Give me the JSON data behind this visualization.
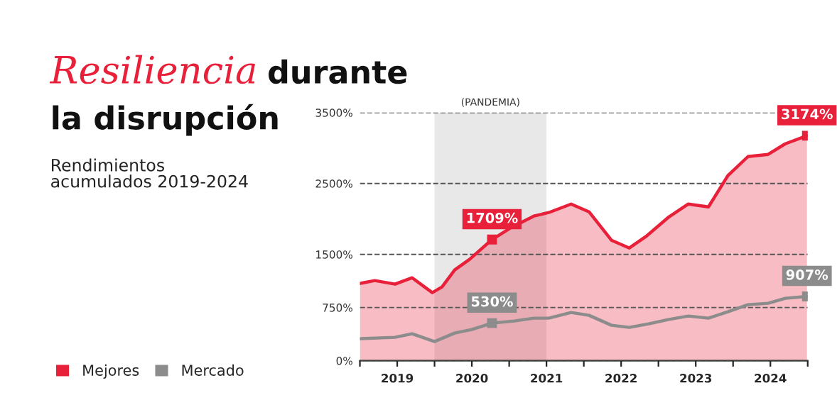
{
  "chart_data": {
    "type": "area",
    "title": "Resiliencia durante la disrupción",
    "subtitle": "Rendimientos acumulados 2019-2024",
    "xlim": [
      2019,
      2025
    ],
    "xticks": [
      {
        "value": 2019,
        "label": null
      },
      {
        "value": 2019.5,
        "label": "2019"
      },
      {
        "value": 2020,
        "label": null
      },
      {
        "value": 2020.5,
        "label": "2020"
      },
      {
        "value": 2021,
        "label": null
      },
      {
        "value": 2021.5,
        "label": "2021"
      },
      {
        "value": 2022,
        "label": null
      },
      {
        "value": 2022.5,
        "label": "2022"
      },
      {
        "value": 2023,
        "label": null
      },
      {
        "value": 2023.5,
        "label": "2023"
      },
      {
        "value": 2024,
        "label": null
      },
      {
        "value": 2024.5,
        "label": "2024"
      },
      {
        "value": 2025,
        "label": null
      }
    ],
    "ylim": [
      0,
      3500
    ],
    "yticks": [
      {
        "value": 0,
        "label": "0%"
      },
      {
        "value": 750,
        "label": "750%"
      },
      {
        "value": 1500,
        "label": "1500%"
      },
      {
        "value": 2500,
        "label": "2500%"
      },
      {
        "value": 3500,
        "label": "3500%"
      }
    ],
    "grid": "y",
    "legend": "bottom left",
    "bands": [
      {
        "axis": "x",
        "from": 2020.0,
        "to": 2021.5,
        "label": "(PANDEMIA)",
        "color": "#d9d9d9"
      }
    ],
    "series": [
      {
        "name": "Mejores",
        "type": "area",
        "color": "#e8203a",
        "x": [
          2019.0,
          2019.2,
          2019.47,
          2019.7,
          2019.97,
          2020.1,
          2020.27,
          2020.47,
          2020.77,
          2021.03,
          2021.33,
          2021.53,
          2021.83,
          2022.07,
          2022.37,
          2022.61,
          2022.83,
          2023.13,
          2023.4,
          2023.67,
          2023.93,
          2024.2,
          2024.47,
          2024.7,
          2024.99
        ],
        "values": [
          1090,
          1130,
          1080,
          1170,
          960,
          1040,
          1280,
          1430,
          1709,
          1880,
          2040,
          2090,
          2210,
          2100,
          1700,
          1590,
          1750,
          2020,
          2210,
          2170,
          2610,
          2880,
          2910,
          3060,
          3174
        ],
        "value_labels": [
          null,
          null,
          null,
          null,
          null,
          null,
          null,
          null,
          "1709%",
          null,
          null,
          null,
          null,
          null,
          null,
          null,
          null,
          null,
          null,
          null,
          null,
          null,
          null,
          null,
          "3174%"
        ]
      },
      {
        "name": "Mercado",
        "type": "line",
        "color": "#8c8c8c",
        "x": [
          2019.0,
          2019.47,
          2019.7,
          2020.0,
          2020.27,
          2020.5,
          2020.77,
          2021.07,
          2021.33,
          2021.53,
          2021.83,
          2022.07,
          2022.37,
          2022.61,
          2022.87,
          2023.13,
          2023.4,
          2023.67,
          2023.93,
          2024.2,
          2024.47,
          2024.7,
          2024.99
        ],
        "values": [
          310,
          330,
          380,
          270,
          390,
          440,
          530,
          560,
          600,
          600,
          680,
          640,
          500,
          470,
          520,
          580,
          630,
          600,
          690,
          790,
          810,
          880,
          907
        ],
        "value_labels": [
          null,
          null,
          null,
          null,
          null,
          null,
          "530%",
          null,
          null,
          null,
          null,
          null,
          null,
          null,
          null,
          null,
          null,
          null,
          null,
          null,
          null,
          null,
          "907%"
        ]
      }
    ]
  }
}
